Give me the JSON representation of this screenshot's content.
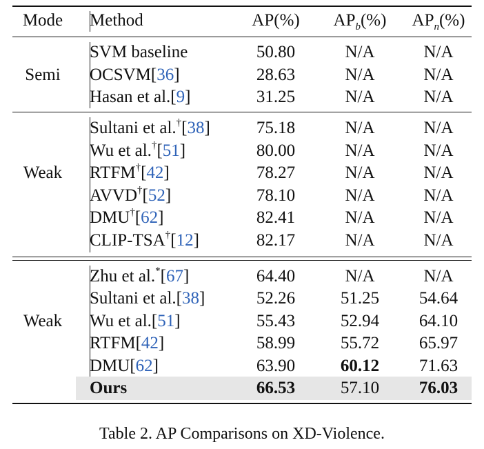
{
  "table": {
    "headers": {
      "mode": "Mode",
      "method": "Method",
      "ap": "AP(%)",
      "apb_prefix": "AP",
      "apb_sub": "b",
      "apb_suffix": "(%)",
      "apn_prefix": "AP",
      "apn_sub": "n",
      "apn_suffix": "(%)"
    },
    "groups": [
      {
        "mode": "Semi",
        "rows": [
          {
            "name": "SVM baseline",
            "sup": "",
            "ref": "",
            "ap": "50.80",
            "apb": "N/A",
            "apn": "N/A"
          },
          {
            "name": "OCSVM[",
            "sup": "",
            "ref": "36",
            "close": "]",
            "ap": "28.63",
            "apb": "N/A",
            "apn": "N/A"
          },
          {
            "name": "Hasan et al.[",
            "sup": "",
            "ref": "9",
            "close": "]",
            "ap": "31.25",
            "apb": "N/A",
            "apn": "N/A"
          }
        ]
      },
      {
        "mode": "Weak",
        "rows": [
          {
            "name": "Sultani et al.",
            "sup": "†",
            "pre": "[",
            "ref": "38",
            "close": "]",
            "ap": "75.18",
            "apb": "N/A",
            "apn": "N/A"
          },
          {
            "name": "Wu et al.",
            "sup": "†",
            "pre": "[",
            "ref": "51",
            "close": "]",
            "ap": "80.00",
            "apb": "N/A",
            "apn": "N/A"
          },
          {
            "name": "RTFM",
            "sup": "†",
            "pre": "[",
            "ref": "42",
            "close": "]",
            "ap": "78.27",
            "apb": "N/A",
            "apn": "N/A"
          },
          {
            "name": "AVVD",
            "sup": "†",
            "pre": "[",
            "ref": "52",
            "close": "]",
            "ap": "78.10",
            "apb": "N/A",
            "apn": "N/A"
          },
          {
            "name": "DMU",
            "sup": "†",
            "pre": "[",
            "ref": "62",
            "close": "]",
            "ap": "82.41",
            "apb": "N/A",
            "apn": "N/A"
          },
          {
            "name": "CLIP-TSA",
            "sup": "†",
            "pre": "[",
            "ref": "12",
            "close": "]",
            "ap": "82.17",
            "apb": "N/A",
            "apn": "N/A"
          }
        ]
      },
      {
        "mode": "Weak",
        "rows": [
          {
            "name": "Zhu et al.",
            "sup": "*",
            "pre": "[",
            "ref": "67",
            "close": "]",
            "ap": "64.40",
            "apb": "N/A",
            "apn": "N/A"
          },
          {
            "name": "Sultani et al.[",
            "sup": "",
            "ref": "38",
            "close": "]",
            "ap": "52.26",
            "apb": "51.25",
            "apn": "54.64"
          },
          {
            "name": "Wu et al.[",
            "sup": "",
            "ref": "51",
            "close": "]",
            "ap": "55.43",
            "apb": "52.94",
            "apn": "64.10"
          },
          {
            "name": "RTFM[",
            "sup": "",
            "ref": "42",
            "close": "]",
            "ap": "58.99",
            "apb": "55.72",
            "apn": "65.97"
          },
          {
            "name": "DMU[",
            "sup": "",
            "ref": "62",
            "close": "]",
            "ap": "63.90",
            "apb": "60.12",
            "apn": "71.63"
          },
          {
            "name": "Ours",
            "sup": "",
            "ref": "",
            "ap": "66.53",
            "apb": "57.10",
            "apn": "76.03"
          }
        ]
      }
    ]
  },
  "caption": "Table 2. AP Comparisons on XD-Violence."
}
